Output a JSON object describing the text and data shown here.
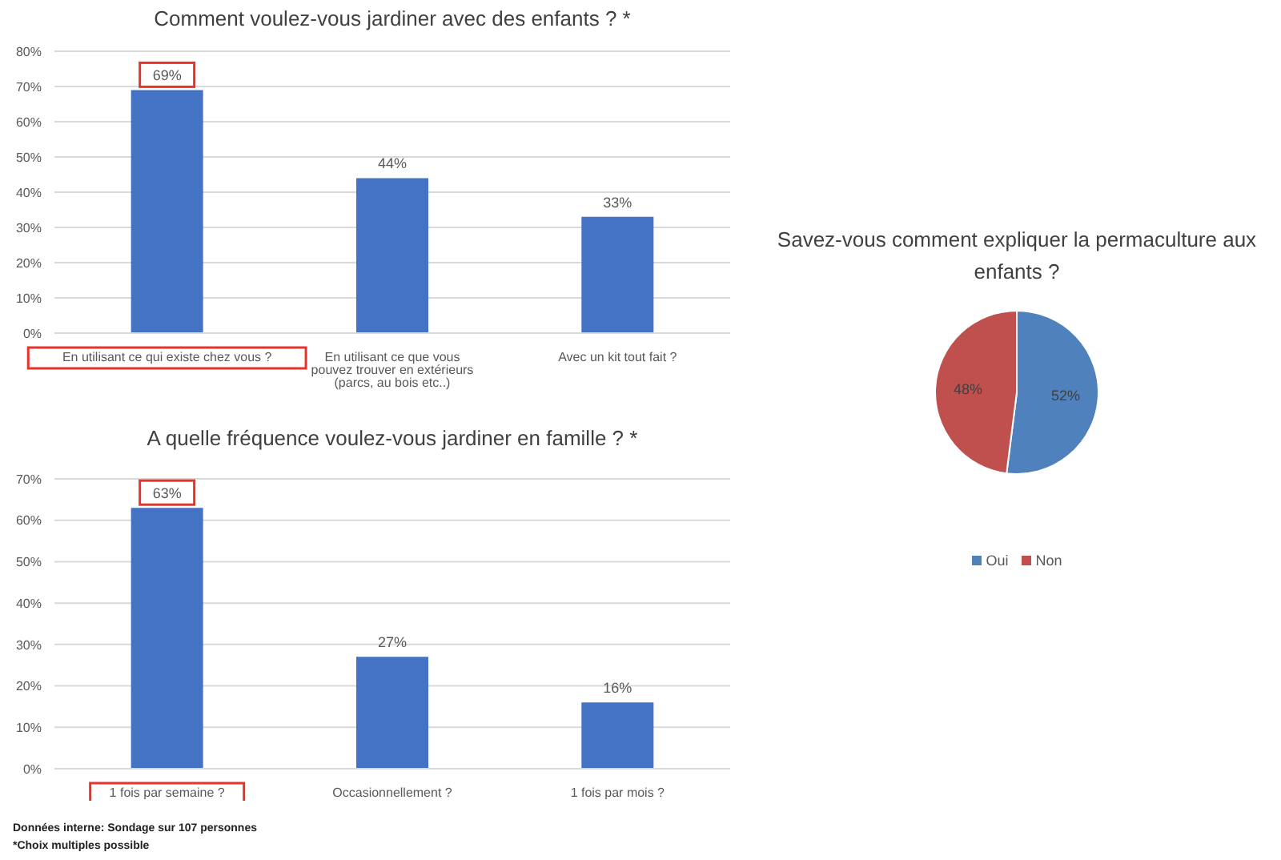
{
  "chart_data": [
    {
      "type": "bar",
      "title": "Comment voulez-vous jardiner avec des enfants ? *",
      "categories": [
        "En utilisant ce qui existe chez vous ?",
        "En utilisant ce que vous pouvez trouver en extérieurs (parcs, au bois etc..)",
        "Avec un kit tout fait ?"
      ],
      "values": [
        69,
        44,
        33
      ],
      "value_labels": [
        "69%",
        "44%",
        "33%"
      ],
      "color": "#4472c4",
      "ylim": [
        0,
        80
      ],
      "yticks": [
        {
          "value": 0,
          "label": "0%"
        },
        {
          "value": 10,
          "label": "10%"
        },
        {
          "value": 20,
          "label": "20%"
        },
        {
          "value": 30,
          "label": "30%"
        },
        {
          "value": 40,
          "label": "40%"
        },
        {
          "value": 50,
          "label": "50%"
        },
        {
          "value": 60,
          "label": "60%"
        },
        {
          "value": 70,
          "label": "70%"
        },
        {
          "value": 80,
          "label": "80%"
        }
      ],
      "grid": "y"
    },
    {
      "type": "bar",
      "title": "A quelle fréquence voulez-vous jardiner en famille ?  *",
      "categories": [
        "1 fois par semaine ?",
        "Occasionnellement ?",
        "1 fois par mois ?"
      ],
      "values": [
        63,
        27,
        16
      ],
      "value_labels": [
        "63%",
        "27%",
        "16%"
      ],
      "color": "#4472c4",
      "ylim": [
        0,
        70
      ],
      "yticks": [
        {
          "value": 0,
          "label": "0%"
        },
        {
          "value": 10,
          "label": "10%"
        },
        {
          "value": 20,
          "label": "20%"
        },
        {
          "value": 30,
          "label": "30%"
        },
        {
          "value": 40,
          "label": "40%"
        },
        {
          "value": 50,
          "label": "50%"
        },
        {
          "value": 60,
          "label": "60%"
        },
        {
          "value": 70,
          "label": "70%"
        }
      ],
      "grid": "y",
      "annotations": [
        "Données interne: Sondage sur 107 personnes",
        "*Choix multiples possible"
      ]
    },
    {
      "type": "pie",
      "title": "Savez-vous comment expliquer la permaculture aux enfants ?",
      "categories": [
        "Oui",
        "Non"
      ],
      "values": [
        52,
        48
      ],
      "value_labels": [
        "52%",
        "48%"
      ],
      "colors": [
        "#4f81bd",
        "#c0504d"
      ],
      "legend": "bottom"
    }
  ]
}
